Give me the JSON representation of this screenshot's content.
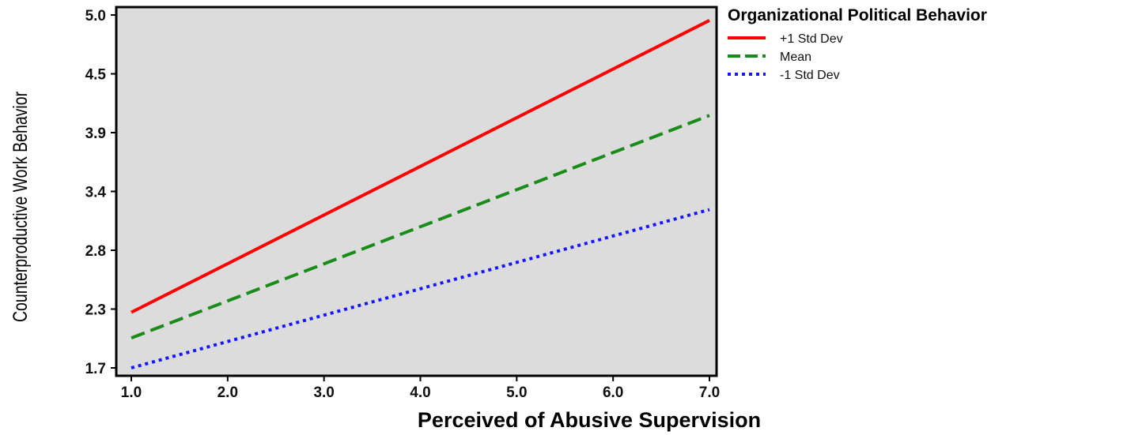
{
  "chart_data": {
    "type": "line",
    "xlabel": "Perceived of Abusive Supervision",
    "ylabel": "Counterproductive Work Behavior",
    "xlim": [
      1.0,
      7.0
    ],
    "ylim": [
      1.7,
      5.0
    ],
    "x_ticks": [
      "1.0",
      "2.0",
      "3.0",
      "4.0",
      "5.0",
      "6.0",
      "7.0"
    ],
    "y_ticks": [
      "1.7",
      "2.3",
      "2.8",
      "3.4",
      "3.9",
      "4.5",
      "5.0"
    ],
    "grid": false,
    "background": "#dcdcdc",
    "legend": {
      "title": "Organizational Political Behavior",
      "placement": "outside-top-right"
    },
    "series": [
      {
        "name": "+1 Std Dev",
        "x": [
          1.0,
          7.0
        ],
        "y": [
          2.22,
          4.95
        ],
        "color": "#ff0000",
        "style": "solid"
      },
      {
        "name": "Mean",
        "x": [
          1.0,
          7.0
        ],
        "y": [
          1.98,
          4.06
        ],
        "color": "#1a8c1a",
        "style": "dashed"
      },
      {
        "name": "-1 Std Dev",
        "x": [
          1.0,
          7.0
        ],
        "y": [
          1.7,
          3.18
        ],
        "color": "#1515ff",
        "style": "dotted"
      }
    ]
  }
}
